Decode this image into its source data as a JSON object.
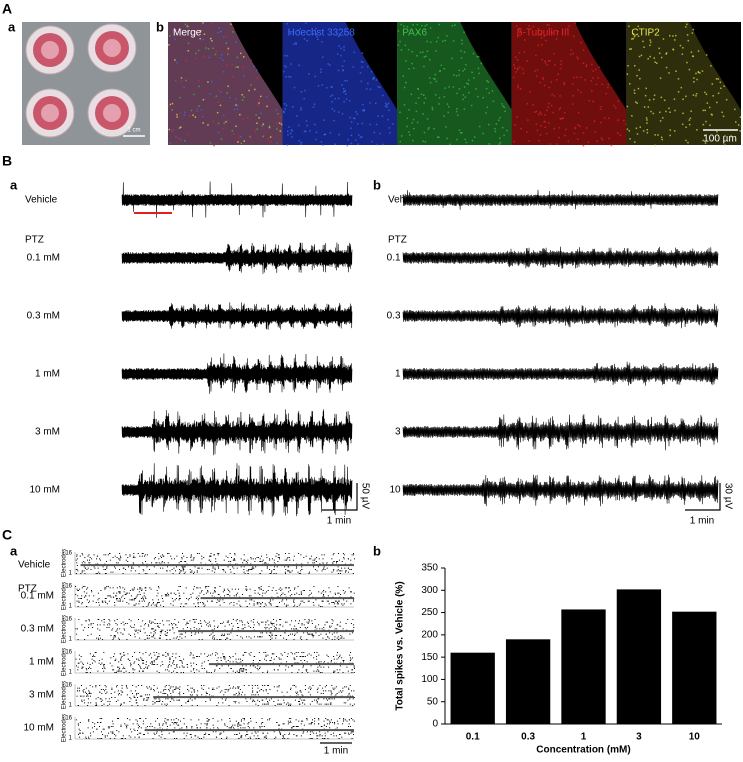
{
  "labels": {
    "A": "A",
    "Aa": "a",
    "Ab": "b",
    "B": "B",
    "Ba": "a",
    "Bb": "b",
    "C": "C",
    "Ca": "a",
    "Cb": "b"
  },
  "panel_A": {
    "photo_scale": "1 cm",
    "channels": [
      "Merge",
      "Hoechst 33258",
      "PAX6",
      "β-Tubulin III",
      "CTIP2"
    ],
    "scale": "100 µm"
  },
  "conditions": [
    "Vehicle",
    "0.1 mM",
    "0.3 mM",
    "1 mM",
    "3 mM",
    "10 mM"
  ],
  "group": "PTZ",
  "panel_B": {
    "time_scale": "1 min",
    "a_amp_scale": "50 µV",
    "b_amp_scale": "30 µV"
  },
  "panel_C": {
    "electrode_top": "16",
    "electrode_bottom": "1",
    "electrode_axis": "Electrodes",
    "time_scale": "1 min"
  },
  "chart_data": {
    "type": "bar",
    "x_label": "Concentration (mM)",
    "y_label": "Total spikes vs. Vehicle (%)",
    "categories": [
      "0.1",
      "0.3",
      "1",
      "3",
      "10"
    ],
    "values": [
      160,
      190,
      257,
      302,
      252
    ],
    "color": "#000000",
    "ylim": [
      0,
      350
    ],
    "yticks": [
      0,
      50,
      100,
      150,
      200,
      250,
      300,
      350
    ]
  }
}
